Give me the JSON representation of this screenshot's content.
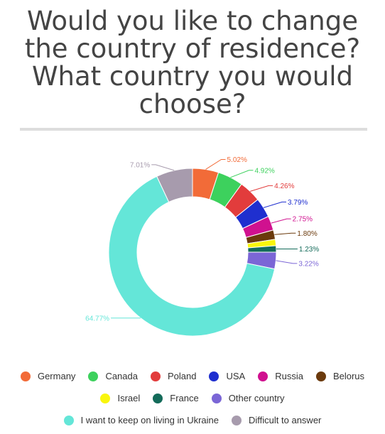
{
  "title": "Would you like to change the country of residence? What country you would choose?",
  "chart_data": {
    "type": "pie",
    "variant": "donut",
    "series": [
      {
        "name": "Germany",
        "value": 5.02,
        "label": "5.02%",
        "color": "#f26b38"
      },
      {
        "name": "Canada",
        "value": 4.92,
        "label": "4.92%",
        "color": "#3dd15d"
      },
      {
        "name": "Poland",
        "value": 4.26,
        "label": "4.26%",
        "color": "#e23c3c"
      },
      {
        "name": "USA",
        "value": 3.79,
        "label": "3.79%",
        "color": "#1f2fcf"
      },
      {
        "name": "Russia",
        "value": 2.75,
        "label": "2.75%",
        "color": "#d0118f"
      },
      {
        "name": "Belorus",
        "value": 1.8,
        "label": "1.80%",
        "color": "#6b3a0c"
      },
      {
        "name": "Israel",
        "value": 1.23,
        "label": "",
        "color": "#f9f60d"
      },
      {
        "name": "France",
        "value": 1.23,
        "label": "1.23%",
        "color": "#146b5a"
      },
      {
        "name": "Other country",
        "value": 3.22,
        "label": "3.22%",
        "color": "#7b66d6"
      },
      {
        "name": "I want to keep on living in Ukraine",
        "value": 64.77,
        "label": "64.77%",
        "color": "#64e6d8"
      },
      {
        "name": "Difficult to answer",
        "value": 7.01,
        "label": "7.01%",
        "color": "#a79bad"
      }
    ],
    "legend": [
      [
        "Germany",
        "Canada",
        "Poland",
        "USA",
        "Russia",
        "Belorus"
      ],
      [
        "Israel",
        "France",
        "Other country"
      ],
      [
        "I want to keep on living in Ukraine",
        "Difficult to answer"
      ]
    ],
    "legend_position": "bottom"
  }
}
